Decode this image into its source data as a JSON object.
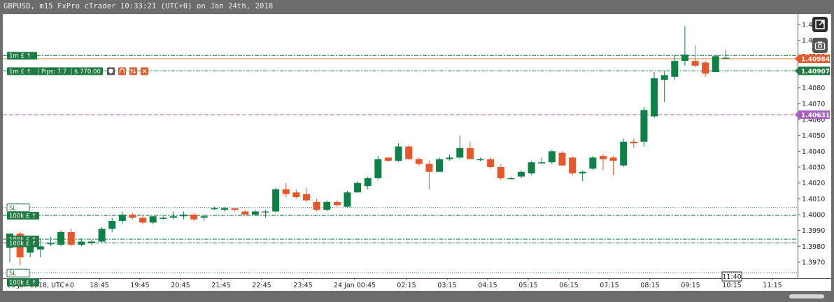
{
  "title": "GBPUSD, m15 FxPro cTrader 10:33:21 (UTC+0) on Jan 24th, 2018",
  "colors": {
    "bull": "#0e8146",
    "bear": "#e8572a",
    "bid_line": "#e0782f",
    "alert_line": "#a95fbf",
    "level_line": "#1f7a43"
  },
  "icons": {
    "expand": "expand-icon",
    "camera": "camera-icon"
  },
  "chart_data": {
    "type": "candlestick",
    "symbol": "GBPUSD",
    "timeframe": "m15",
    "ylim": [
      1.3961,
      1.4126
    ],
    "yticks": [
      "1.3970",
      "1.3980",
      "1.3990",
      "1.4000",
      "1.4010",
      "1.4020",
      "1.4030",
      "1.4040",
      "1.4050",
      "1.4060",
      "1.4070",
      "1.4080",
      "1.4090",
      "1.4100",
      "1.4110",
      "1.4120"
    ],
    "xticks": [
      "23 Jan 2018, UTC+0",
      "18:45",
      "19:45",
      "20:45",
      "21:45",
      "22:45",
      "23:45",
      "24 Jan 00:45",
      "02:15",
      "03:15",
      "04:15",
      "05:15",
      "06:15",
      "07:15",
      "08:15",
      "09:15",
      "10:15",
      "11:15"
    ],
    "cursor_time": "11:40",
    "current_price": "1.40984",
    "alert_price": "1.40631",
    "position_price": "1.40907",
    "candles": [
      {
        "o": 1.3979,
        "h": 1.3988,
        "l": 1.397,
        "c": 1.3988
      },
      {
        "o": 1.3988,
        "h": 1.3989,
        "l": 1.3968,
        "c": 1.3973
      },
      {
        "o": 1.3976,
        "h": 1.3982,
        "l": 1.3973,
        "c": 1.3982
      },
      {
        "o": 1.3978,
        "h": 1.3985,
        "l": 1.3973,
        "c": 1.398
      },
      {
        "o": 1.3982,
        "h": 1.3986,
        "l": 1.398,
        "c": 1.3982
      },
      {
        "o": 1.3981,
        "h": 1.399,
        "l": 1.398,
        "c": 1.3989
      },
      {
        "o": 1.3989,
        "h": 1.3991,
        "l": 1.398,
        "c": 1.3981
      },
      {
        "o": 1.3981,
        "h": 1.3985,
        "l": 1.398,
        "c": 1.3983
      },
      {
        "o": 1.3982,
        "h": 1.3984,
        "l": 1.3981,
        "c": 1.3983
      },
      {
        "o": 1.3983,
        "h": 1.3992,
        "l": 1.3982,
        "c": 1.3991
      },
      {
        "o": 1.3991,
        "h": 1.3998,
        "l": 1.3989,
        "c": 1.3996
      },
      {
        "o": 1.3996,
        "h": 1.4002,
        "l": 1.3994,
        "c": 1.4
      },
      {
        "o": 1.4,
        "h": 1.4001,
        "l": 1.3997,
        "c": 1.3998
      },
      {
        "o": 1.3998,
        "h": 1.4,
        "l": 1.3994,
        "c": 1.3995
      },
      {
        "o": 1.3995,
        "h": 1.3999,
        "l": 1.3994,
        "c": 1.3999
      },
      {
        "o": 1.3998,
        "h": 1.3999,
        "l": 1.3997,
        "c": 1.3998
      },
      {
        "o": 1.3998,
        "h": 1.4002,
        "l": 1.3997,
        "c": 1.3999
      },
      {
        "o": 1.3999,
        "h": 1.4002,
        "l": 1.3997,
        "c": 1.4
      },
      {
        "o": 1.4,
        "h": 1.4001,
        "l": 1.3996,
        "c": 1.3997
      },
      {
        "o": 1.3998,
        "h": 1.4,
        "l": 1.3996,
        "c": 1.3999
      },
      {
        "o": 1.4004,
        "h": 1.4005,
        "l": 1.4003,
        "c": 1.4004
      },
      {
        "o": 1.4003,
        "h": 1.4005,
        "l": 1.4002,
        "c": 1.4004
      },
      {
        "o": 1.4004,
        "h": 1.4004,
        "l": 1.4002,
        "c": 1.4003
      },
      {
        "o": 1.4002,
        "h": 1.4003,
        "l": 1.4,
        "c": 1.4
      },
      {
        "o": 1.4,
        "h": 1.4003,
        "l": 1.3999,
        "c": 1.4002
      },
      {
        "o": 1.4002,
        "h": 1.4003,
        "l": 1.3998,
        "c": 1.4002
      },
      {
        "o": 1.4002,
        "h": 1.4017,
        "l": 1.4001,
        "c": 1.4016
      },
      {
        "o": 1.4016,
        "h": 1.402,
        "l": 1.4011,
        "c": 1.4013
      },
      {
        "o": 1.4014,
        "h": 1.4016,
        "l": 1.401,
        "c": 1.4011
      },
      {
        "o": 1.4013,
        "h": 1.4017,
        "l": 1.4008,
        "c": 1.4009
      },
      {
        "o": 1.4008,
        "h": 1.401,
        "l": 1.4002,
        "c": 1.4003
      },
      {
        "o": 1.4003,
        "h": 1.4009,
        "l": 1.4002,
        "c": 1.4008
      },
      {
        "o": 1.4008,
        "h": 1.4009,
        "l": 1.4005,
        "c": 1.4006
      },
      {
        "o": 1.4005,
        "h": 1.4015,
        "l": 1.4005,
        "c": 1.4014
      },
      {
        "o": 1.4014,
        "h": 1.4021,
        "l": 1.4014,
        "c": 1.402
      },
      {
        "o": 1.4018,
        "h": 1.4024,
        "l": 1.4016,
        "c": 1.4023
      },
      {
        "o": 1.4023,
        "h": 1.4037,
        "l": 1.4022,
        "c": 1.4035
      },
      {
        "o": 1.4036,
        "h": 1.4036,
        "l": 1.4033,
        "c": 1.4034
      },
      {
        "o": 1.4034,
        "h": 1.4045,
        "l": 1.4033,
        "c": 1.4043
      },
      {
        "o": 1.4043,
        "h": 1.4044,
        "l": 1.4035,
        "c": 1.4035
      },
      {
        "o": 1.4035,
        "h": 1.4036,
        "l": 1.4031,
        "c": 1.4032
      },
      {
        "o": 1.4032,
        "h": 1.4034,
        "l": 1.4016,
        "c": 1.4027
      },
      {
        "o": 1.4027,
        "h": 1.4036,
        "l": 1.4027,
        "c": 1.4035
      },
      {
        "o": 1.4035,
        "h": 1.4038,
        "l": 1.4034,
        "c": 1.4036
      },
      {
        "o": 1.4036,
        "h": 1.405,
        "l": 1.4035,
        "c": 1.4042
      },
      {
        "o": 1.4042,
        "h": 1.4046,
        "l": 1.4035,
        "c": 1.4035
      },
      {
        "o": 1.4035,
        "h": 1.4036,
        "l": 1.4034,
        "c": 1.4035
      },
      {
        "o": 1.4035,
        "h": 1.4036,
        "l": 1.4029,
        "c": 1.403
      },
      {
        "o": 1.403,
        "h": 1.4032,
        "l": 1.4022,
        "c": 1.4023
      },
      {
        "o": 1.4023,
        "h": 1.4024,
        "l": 1.4023,
        "c": 1.4023
      },
      {
        "o": 1.4024,
        "h": 1.4028,
        "l": 1.4023,
        "c": 1.4027
      },
      {
        "o": 1.4026,
        "h": 1.4034,
        "l": 1.4025,
        "c": 1.4033
      },
      {
        "o": 1.4033,
        "h": 1.4036,
        "l": 1.4032,
        "c": 1.4033
      },
      {
        "o": 1.4033,
        "h": 1.4041,
        "l": 1.4032,
        "c": 1.404
      },
      {
        "o": 1.4039,
        "h": 1.404,
        "l": 1.4031,
        "c": 1.4031
      },
      {
        "o": 1.4036,
        "h": 1.4037,
        "l": 1.4025,
        "c": 1.4026
      },
      {
        "o": 1.4026,
        "h": 1.4028,
        "l": 1.4021,
        "c": 1.4027
      },
      {
        "o": 1.4029,
        "h": 1.4037,
        "l": 1.4028,
        "c": 1.4036
      },
      {
        "o": 1.4037,
        "h": 1.4038,
        "l": 1.4028,
        "c": 1.4035
      },
      {
        "o": 1.4036,
        "h": 1.4037,
        "l": 1.4025,
        "c": 1.4034
      },
      {
        "o": 1.4031,
        "h": 1.4048,
        "l": 1.403,
        "c": 1.4046
      },
      {
        "o": 1.4046,
        "h": 1.4048,
        "l": 1.4042,
        "c": 1.4045
      },
      {
        "o": 1.4046,
        "h": 1.4068,
        "l": 1.4043,
        "c": 1.4066
      },
      {
        "o": 1.4062,
        "h": 1.409,
        "l": 1.4061,
        "c": 1.4086
      },
      {
        "o": 1.4085,
        "h": 1.4091,
        "l": 1.4071,
        "c": 1.4088
      },
      {
        "o": 1.4087,
        "h": 1.4101,
        "l": 1.4085,
        "c": 1.4097
      },
      {
        "o": 1.4097,
        "h": 1.4119,
        "l": 1.4094,
        "c": 1.4101
      },
      {
        "o": 1.4097,
        "h": 1.4107,
        "l": 1.4093,
        "c": 1.4094
      },
      {
        "o": 1.4096,
        "h": 1.4097,
        "l": 1.4087,
        "c": 1.4089
      },
      {
        "o": 1.409,
        "h": 1.4101,
        "l": 1.409,
        "c": 1.41
      },
      {
        "o": 1.4099,
        "h": 1.4104,
        "l": 1.4098,
        "c": 1.4099
      }
    ]
  },
  "price_labels": {
    "current": "1.40984",
    "alert": "1.40631",
    "position": "1.40907",
    "cursor_time": "11:40"
  },
  "order_tags": {
    "t1": "1m £ ↑",
    "t2": "1m £ ↑",
    "t2_pips": "Pips: 7.7",
    "t2_pnl": "$ 770.00",
    "sl1": "SL",
    "t3": "100k £ ↑",
    "t4": "100k £ ↑",
    "t5": "100k £ ↑",
    "sl2": "SL",
    "t6": "100k £ ↑"
  }
}
